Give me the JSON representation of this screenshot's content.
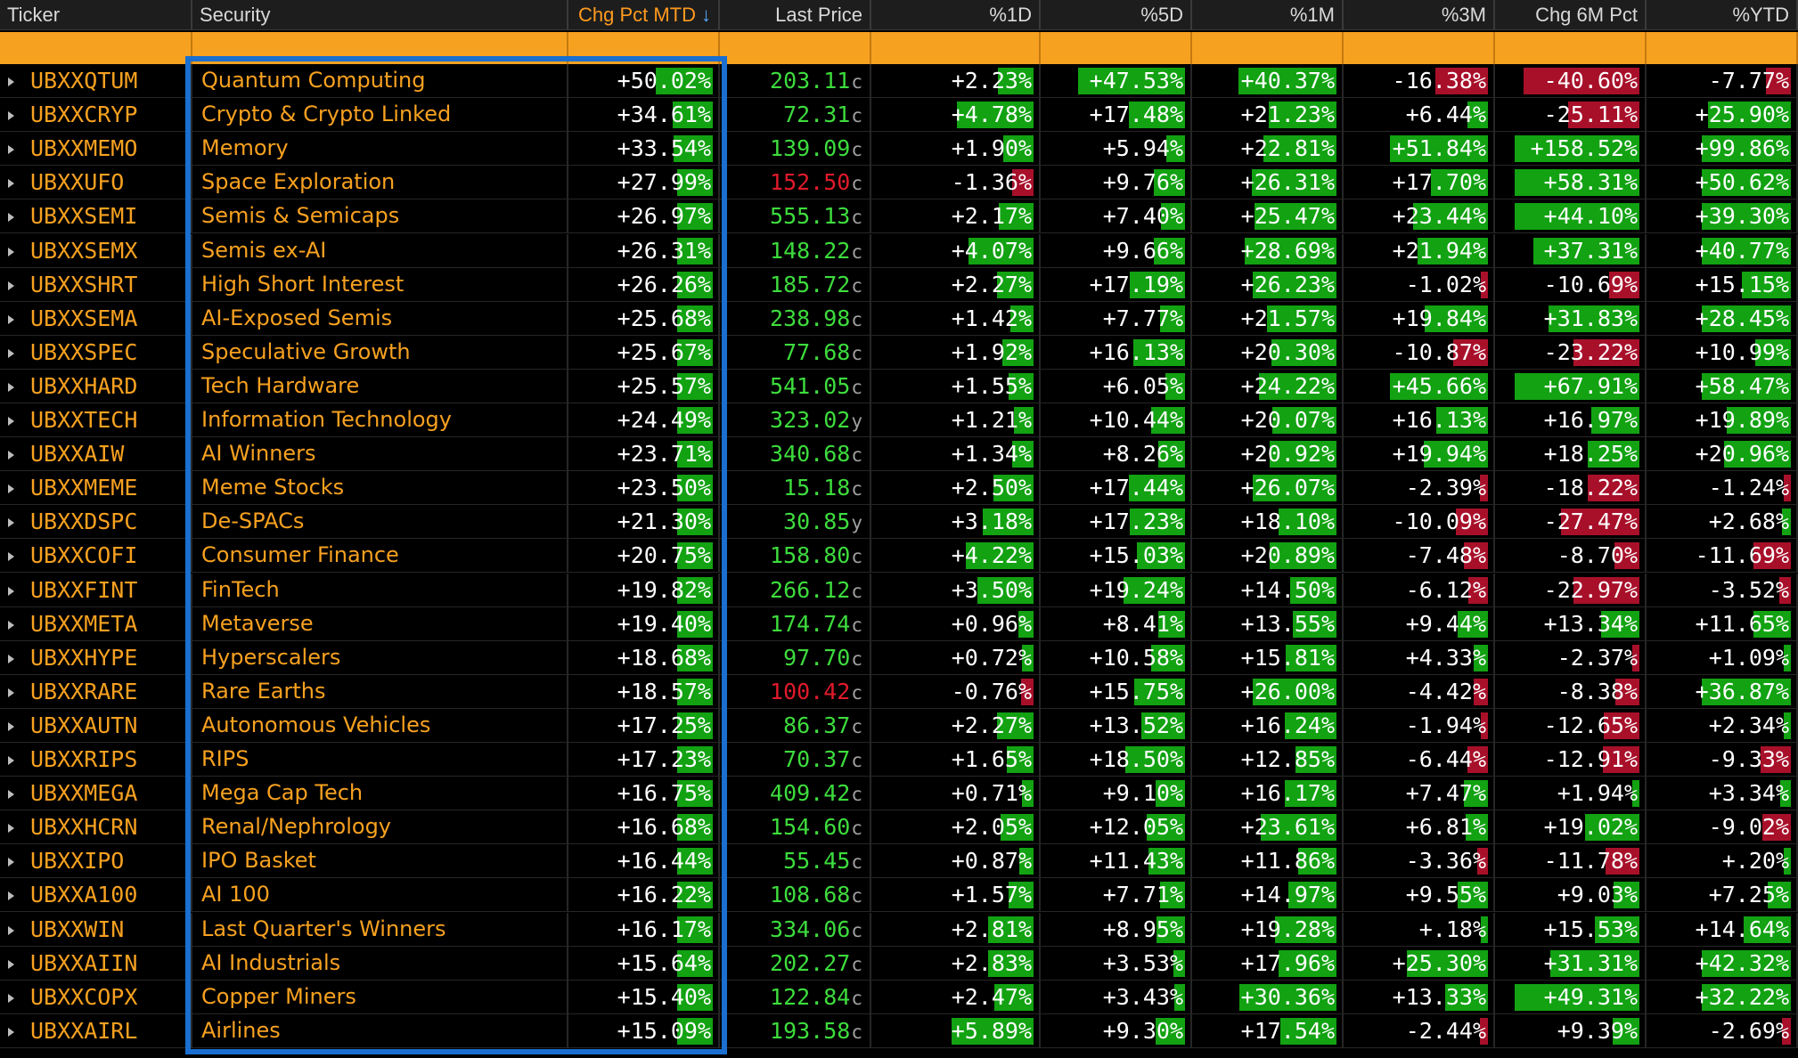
{
  "columns": [
    {
      "key": "ticker",
      "label": "Ticker",
      "align": "left"
    },
    {
      "key": "security",
      "label": "Security",
      "align": "left"
    },
    {
      "key": "mtd",
      "label": "Chg Pct MTD",
      "align": "right",
      "sorted": true,
      "sort_icon": "↓"
    },
    {
      "key": "last",
      "label": "Last Price",
      "align": "right"
    },
    {
      "key": "d1",
      "label": "%1D",
      "align": "right"
    },
    {
      "key": "d5",
      "label": "%5D",
      "align": "right"
    },
    {
      "key": "m1",
      "label": "%1M",
      "align": "right"
    },
    {
      "key": "m3",
      "label": "%3M",
      "align": "right"
    },
    {
      "key": "m6",
      "label": "Chg 6M Pct",
      "align": "right"
    },
    {
      "key": "ytd",
      "label": "%YTD",
      "align": "right"
    }
  ],
  "colors": {
    "positive": "#12a212",
    "negative": "#a8102a",
    "accent": "#f7a120",
    "price_up": "#3ddc3d",
    "price_down": "#e01a2a",
    "highlight": "#1a6fd0"
  },
  "rows": [
    {
      "ticker": "UBXXQTUM",
      "security": "Quantum Computing",
      "mtd": "+50.02%",
      "last": "203.11",
      "ccy": "c",
      "last_dir": "up",
      "d1": "+2.23%",
      "d5": "+47.53%",
      "m1": "+40.37%",
      "m3": "-16.38%",
      "m6": "-40.60%",
      "ytd": "-7.77%"
    },
    {
      "ticker": "UBXXCRYP",
      "security": "Crypto & Crypto Linked",
      "mtd": "+34.61%",
      "last": "72.31",
      "ccy": "c",
      "last_dir": "up",
      "d1": "+4.78%",
      "d5": "+17.48%",
      "m1": "+21.23%",
      "m3": "+6.44%",
      "m6": "-25.11%",
      "ytd": "+25.90%"
    },
    {
      "ticker": "UBXXMEMO",
      "security": "Memory",
      "mtd": "+33.54%",
      "last": "139.09",
      "ccy": "c",
      "last_dir": "up",
      "d1": "+1.90%",
      "d5": "+5.94%",
      "m1": "+22.81%",
      "m3": "+51.84%",
      "m6": "+158.52%",
      "ytd": "+99.86%"
    },
    {
      "ticker": "UBXXUFO",
      "security": "Space Exploration",
      "mtd": "+27.99%",
      "last": "152.50",
      "ccy": "c",
      "last_dir": "down",
      "d1": "-1.36%",
      "d5": "+9.76%",
      "m1": "+26.31%",
      "m3": "+17.70%",
      "m6": "+58.31%",
      "ytd": "+50.62%"
    },
    {
      "ticker": "UBXXSEMI",
      "security": "Semis & Semicaps",
      "mtd": "+26.97%",
      "last": "555.13",
      "ccy": "c",
      "last_dir": "up",
      "d1": "+2.17%",
      "d5": "+7.40%",
      "m1": "+25.47%",
      "m3": "+23.44%",
      "m6": "+44.10%",
      "ytd": "+39.30%"
    },
    {
      "ticker": "UBXXSEMX",
      "security": "Semis ex-AI",
      "mtd": "+26.31%",
      "last": "148.22",
      "ccy": "c",
      "last_dir": "up",
      "d1": "+4.07%",
      "d5": "+9.66%",
      "m1": "+28.69%",
      "m3": "+21.94%",
      "m6": "+37.31%",
      "ytd": "+40.77%"
    },
    {
      "ticker": "UBXXSHRT",
      "security": "High Short Interest",
      "mtd": "+26.26%",
      "last": "185.72",
      "ccy": "c",
      "last_dir": "up",
      "d1": "+2.27%",
      "d5": "+17.19%",
      "m1": "+26.23%",
      "m3": "-1.02%",
      "m6": "-10.69%",
      "ytd": "+15.15%"
    },
    {
      "ticker": "UBXXSEMA",
      "security": "AI-Exposed Semis",
      "mtd": "+25.68%",
      "last": "238.98",
      "ccy": "c",
      "last_dir": "up",
      "d1": "+1.42%",
      "d5": "+7.77%",
      "m1": "+21.57%",
      "m3": "+19.84%",
      "m6": "+31.83%",
      "ytd": "+28.45%"
    },
    {
      "ticker": "UBXXSPEC",
      "security": "Speculative Growth",
      "mtd": "+25.67%",
      "last": "77.68",
      "ccy": "c",
      "last_dir": "up",
      "d1": "+1.92%",
      "d5": "+16.13%",
      "m1": "+20.30%",
      "m3": "-10.87%",
      "m6": "-23.22%",
      "ytd": "+10.99%"
    },
    {
      "ticker": "UBXXHARD",
      "security": "Tech Hardware",
      "mtd": "+25.57%",
      "last": "541.05",
      "ccy": "c",
      "last_dir": "up",
      "d1": "+1.55%",
      "d5": "+6.05%",
      "m1": "+24.22%",
      "m3": "+45.66%",
      "m6": "+67.91%",
      "ytd": "+58.47%"
    },
    {
      "ticker": "UBXXTECH",
      "security": "Information Technology",
      "mtd": "+24.49%",
      "last": "323.02",
      "ccy": "y",
      "last_dir": "up",
      "d1": "+1.21%",
      "d5": "+10.44%",
      "m1": "+20.07%",
      "m3": "+16.13%",
      "m6": "+16.97%",
      "ytd": "+19.89%"
    },
    {
      "ticker": "UBXXAIW",
      "security": "AI Winners",
      "mtd": "+23.71%",
      "last": "340.68",
      "ccy": "c",
      "last_dir": "up",
      "d1": "+1.34%",
      "d5": "+8.26%",
      "m1": "+20.92%",
      "m3": "+19.94%",
      "m6": "+18.25%",
      "ytd": "+20.96%"
    },
    {
      "ticker": "UBXXMEME",
      "security": "Meme Stocks",
      "mtd": "+23.50%",
      "last": "15.18",
      "ccy": "c",
      "last_dir": "up",
      "d1": "+2.50%",
      "d5": "+17.44%",
      "m1": "+26.07%",
      "m3": "-2.39%",
      "m6": "-18.22%",
      "ytd": "-1.24%"
    },
    {
      "ticker": "UBXXDSPC",
      "security": "De-SPACs",
      "mtd": "+21.30%",
      "last": "30.85",
      "ccy": "y",
      "last_dir": "up",
      "d1": "+3.18%",
      "d5": "+17.23%",
      "m1": "+18.10%",
      "m3": "-10.09%",
      "m6": "-27.47%",
      "ytd": "+2.68%"
    },
    {
      "ticker": "UBXXCOFI",
      "security": "Consumer Finance",
      "mtd": "+20.75%",
      "last": "158.80",
      "ccy": "c",
      "last_dir": "up",
      "d1": "+4.22%",
      "d5": "+15.03%",
      "m1": "+20.89%",
      "m3": "-7.48%",
      "m6": "-8.70%",
      "ytd": "-11.69%"
    },
    {
      "ticker": "UBXXFINT",
      "security": "FinTech",
      "mtd": "+19.82%",
      "last": "266.12",
      "ccy": "c",
      "last_dir": "up",
      "d1": "+3.50%",
      "d5": "+19.24%",
      "m1": "+14.50%",
      "m3": "-6.12%",
      "m6": "-22.97%",
      "ytd": "-3.52%"
    },
    {
      "ticker": "UBXXMETA",
      "security": "Metaverse",
      "mtd": "+19.40%",
      "last": "174.74",
      "ccy": "c",
      "last_dir": "up",
      "d1": "+0.96%",
      "d5": "+8.41%",
      "m1": "+13.55%",
      "m3": "+9.44%",
      "m6": "+13.34%",
      "ytd": "+11.65%"
    },
    {
      "ticker": "UBXXHYPE",
      "security": "Hyperscalers",
      "mtd": "+18.68%",
      "last": "97.70",
      "ccy": "c",
      "last_dir": "up",
      "d1": "+0.72%",
      "d5": "+10.58%",
      "m1": "+15.81%",
      "m3": "+4.33%",
      "m6": "-2.37%",
      "ytd": "+1.09%"
    },
    {
      "ticker": "UBXXRARE",
      "security": "Rare Earths",
      "mtd": "+18.57%",
      "last": "100.42",
      "ccy": "c",
      "last_dir": "down",
      "d1": "-0.76%",
      "d5": "+15.75%",
      "m1": "+26.00%",
      "m3": "-4.42%",
      "m6": "-8.38%",
      "ytd": "+36.87%"
    },
    {
      "ticker": "UBXXAUTN",
      "security": "Autonomous Vehicles",
      "mtd": "+17.25%",
      "last": "86.37",
      "ccy": "c",
      "last_dir": "up",
      "d1": "+2.27%",
      "d5": "+13.52%",
      "m1": "+16.24%",
      "m3": "-1.94%",
      "m6": "-12.65%",
      "ytd": "+2.34%"
    },
    {
      "ticker": "UBXXRIPS",
      "security": "RIPS",
      "mtd": "+17.23%",
      "last": "70.37",
      "ccy": "c",
      "last_dir": "up",
      "d1": "+1.65%",
      "d5": "+18.50%",
      "m1": "+12.85%",
      "m3": "-6.44%",
      "m6": "-12.91%",
      "ytd": "-9.33%"
    },
    {
      "ticker": "UBXXMEGA",
      "security": "Mega Cap Tech",
      "mtd": "+16.75%",
      "last": "409.42",
      "ccy": "c",
      "last_dir": "up",
      "d1": "+0.71%",
      "d5": "+9.10%",
      "m1": "+16.17%",
      "m3": "+7.47%",
      "m6": "+1.94%",
      "ytd": "+3.34%"
    },
    {
      "ticker": "UBXXHCRN",
      "security": "Renal/Nephrology",
      "mtd": "+16.68%",
      "last": "154.60",
      "ccy": "c",
      "last_dir": "up",
      "d1": "+2.05%",
      "d5": "+12.05%",
      "m1": "+23.61%",
      "m3": "+6.81%",
      "m6": "+19.02%",
      "ytd": "-9.02%"
    },
    {
      "ticker": "UBXXIPO",
      "security": "IPO Basket",
      "mtd": "+16.44%",
      "last": "55.45",
      "ccy": "c",
      "last_dir": "up",
      "d1": "+0.87%",
      "d5": "+11.43%",
      "m1": "+11.86%",
      "m3": "-3.36%",
      "m6": "-11.78%",
      "ytd": "+.20%"
    },
    {
      "ticker": "UBXXA100",
      "security": "AI 100",
      "mtd": "+16.22%",
      "last": "108.68",
      "ccy": "c",
      "last_dir": "up",
      "d1": "+1.57%",
      "d5": "+7.71%",
      "m1": "+14.97%",
      "m3": "+9.55%",
      "m6": "+9.03%",
      "ytd": "+7.25%"
    },
    {
      "ticker": "UBXXWIN",
      "security": "Last Quarter's Winners",
      "mtd": "+16.17%",
      "last": "334.06",
      "ccy": "c",
      "last_dir": "up",
      "d1": "+2.81%",
      "d5": "+8.95%",
      "m1": "+19.28%",
      "m3": "+.18%",
      "m6": "+15.53%",
      "ytd": "+14.64%"
    },
    {
      "ticker": "UBXXAIIN",
      "security": "AI Industrials",
      "mtd": "+15.64%",
      "last": "202.27",
      "ccy": "c",
      "last_dir": "up",
      "d1": "+2.83%",
      "d5": "+3.53%",
      "m1": "+17.96%",
      "m3": "+25.30%",
      "m6": "+31.31%",
      "ytd": "+42.32%"
    },
    {
      "ticker": "UBXXCOPX",
      "security": "Copper Miners",
      "mtd": "+15.40%",
      "last": "122.84",
      "ccy": "c",
      "last_dir": "up",
      "d1": "+2.47%",
      "d5": "+3.43%",
      "m1": "+30.36%",
      "m3": "+13.33%",
      "m6": "+49.31%",
      "ytd": "+32.22%"
    },
    {
      "ticker": "UBXXAIRL",
      "security": "Airlines",
      "mtd": "+15.09%",
      "last": "193.58",
      "ccy": "c",
      "last_dir": "up",
      "d1": "+5.89%",
      "d5": "+9.30%",
      "m1": "+17.54%",
      "m3": "-2.44%",
      "m6": "+9.39%",
      "ytd": "-2.69%"
    }
  ]
}
